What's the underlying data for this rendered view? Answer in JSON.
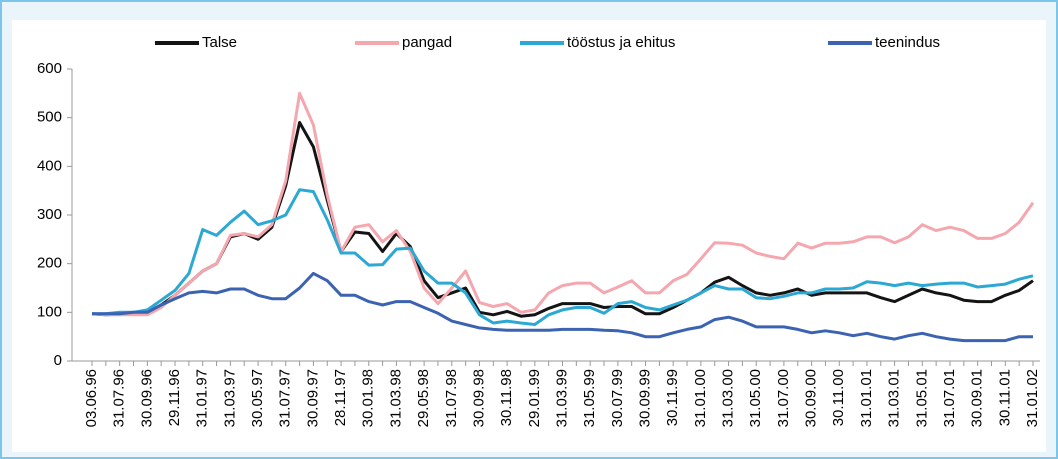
{
  "chart_data": {
    "type": "line",
    "categories": [
      "03.06.96",
      null,
      "31.07.96",
      null,
      "30.09.96",
      null,
      "29.11.96",
      null,
      "31.01.97",
      null,
      "31.03.97",
      null,
      "30.05.97",
      null,
      "31.07.97",
      null,
      "30.09.97",
      null,
      "28.11.97",
      null,
      "30.01.98",
      null,
      "31.03.98",
      null,
      "29.05.98",
      null,
      "31.07.98",
      null,
      "30.09.98",
      null,
      "30.11.98",
      null,
      "29.01.99",
      null,
      "31.03.99",
      null,
      "31.05.99",
      null,
      "30.07.99",
      null,
      "30.09.99",
      null,
      "30.11.99",
      null,
      "31.01.00",
      null,
      "31.03.00",
      null,
      "31.05.00",
      null,
      "31.07.00",
      null,
      "30.09.00",
      null,
      "30.11.00",
      null,
      "31.01.01",
      null,
      "31.03.01",
      null,
      "31.05.01",
      null,
      "31.07.01",
      null,
      "30.09.01",
      null,
      "30.11.01",
      null,
      "31.01.02"
    ],
    "series": [
      {
        "name": "Talse",
        "color": "#141414",
        "values": [
          97,
          95,
          96,
          97,
          100,
          115,
          135,
          160,
          185,
          200,
          255,
          262,
          250,
          275,
          360,
          490,
          440,
          330,
          225,
          265,
          262,
          225,
          262,
          235,
          165,
          130,
          140,
          150,
          100,
          95,
          102,
          92,
          95,
          108,
          118,
          118,
          118,
          110,
          112,
          112,
          97,
          97,
          110,
          125,
          140,
          162,
          172,
          155,
          140,
          135,
          140,
          148,
          135,
          140,
          140,
          140,
          140,
          130,
          122,
          135,
          148,
          140,
          135,
          125,
          122,
          122,
          135,
          145,
          165
        ]
      },
      {
        "name": "pangad",
        "color": "#f4a7ae",
        "values": [
          97,
          95,
          95,
          95,
          95,
          110,
          135,
          160,
          185,
          200,
          258,
          262,
          255,
          280,
          370,
          550,
          485,
          340,
          225,
          275,
          280,
          245,
          268,
          225,
          150,
          118,
          150,
          185,
          120,
          112,
          118,
          100,
          105,
          140,
          155,
          160,
          160,
          140,
          152,
          165,
          140,
          140,
          165,
          178,
          210,
          243,
          242,
          238,
          222,
          215,
          210,
          242,
          232,
          242,
          242,
          245,
          255,
          255,
          243,
          255,
          280,
          268,
          275,
          268,
          252,
          252,
          262,
          285,
          325
        ]
      },
      {
        "name": "tööstus ja ehitus",
        "color": "#2ba8d3",
        "values": [
          97,
          97,
          100,
          100,
          105,
          125,
          145,
          180,
          270,
          258,
          285,
          308,
          280,
          288,
          300,
          352,
          348,
          290,
          222,
          222,
          197,
          198,
          230,
          232,
          185,
          160,
          160,
          140,
          95,
          78,
          82,
          78,
          75,
          95,
          105,
          110,
          110,
          98,
          118,
          122,
          110,
          105,
          115,
          125,
          140,
          155,
          148,
          148,
          130,
          128,
          133,
          140,
          140,
          148,
          148,
          150,
          163,
          160,
          155,
          160,
          155,
          158,
          160,
          160,
          152,
          155,
          158,
          168,
          175
        ]
      },
      {
        "name": "teenindus",
        "color": "#3b63b1",
        "values": [
          97,
          97,
          97,
          100,
          100,
          115,
          128,
          140,
          143,
          140,
          148,
          148,
          135,
          128,
          128,
          150,
          180,
          165,
          135,
          135,
          122,
          115,
          122,
          122,
          110,
          98,
          82,
          75,
          68,
          65,
          63,
          63,
          63,
          63,
          65,
          65,
          65,
          63,
          62,
          58,
          50,
          50,
          58,
          65,
          70,
          85,
          90,
          82,
          70,
          70,
          70,
          65,
          58,
          62,
          58,
          52,
          57,
          50,
          45,
          52,
          57,
          50,
          45,
          42,
          42,
          42,
          42,
          50,
          50
        ]
      }
    ],
    "ylim": [
      0,
      600
    ],
    "yticks": [
      0,
      100,
      200,
      300,
      400,
      500,
      600
    ],
    "grid": false,
    "legend": "top"
  }
}
